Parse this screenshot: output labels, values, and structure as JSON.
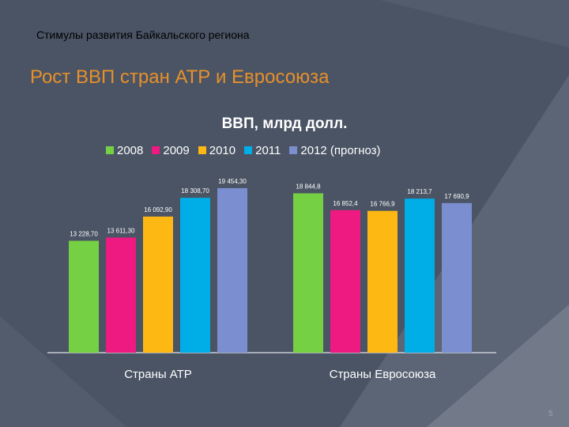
{
  "slide": {
    "subtitle": "Стимулы развития Байкальского региона",
    "title": "Рост ВВП стран АТР и Евросоюза",
    "page_number": "5"
  },
  "colors": {
    "background": "#4a5464",
    "title": "#e8902a"
  },
  "chart_data": {
    "type": "bar",
    "title": "ВВП, млрд долл.",
    "categories": [
      "Страны АТР",
      "Страны Евросоюза"
    ],
    "series": [
      {
        "name": "2008",
        "color": "#76d043",
        "values": [
          13228.7,
          18844.8
        ],
        "labels": [
          "13 228,70",
          "18 844,8"
        ]
      },
      {
        "name": "2009",
        "color": "#ee1a82",
        "values": [
          13611.3,
          16852.4
        ],
        "labels": [
          "13 611,30",
          "16 852,4"
        ]
      },
      {
        "name": "2010",
        "color": "#fdb813",
        "values": [
          16092.9,
          16766.9
        ],
        "labels": [
          "16 092,90",
          "16 766,9"
        ]
      },
      {
        "name": "2011",
        "color": "#00aee7",
        "values": [
          18308.7,
          18213.7
        ],
        "labels": [
          "18 308,70",
          "18 213,7"
        ]
      },
      {
        "name": "2012 (прогноз)",
        "color": "#7b8fd0",
        "values": [
          19454.3,
          17690.9
        ],
        "labels": [
          "19 454,30",
          "17 690,9"
        ]
      }
    ],
    "xlabel": "",
    "ylabel": "",
    "grid": false,
    "legend": "top"
  }
}
